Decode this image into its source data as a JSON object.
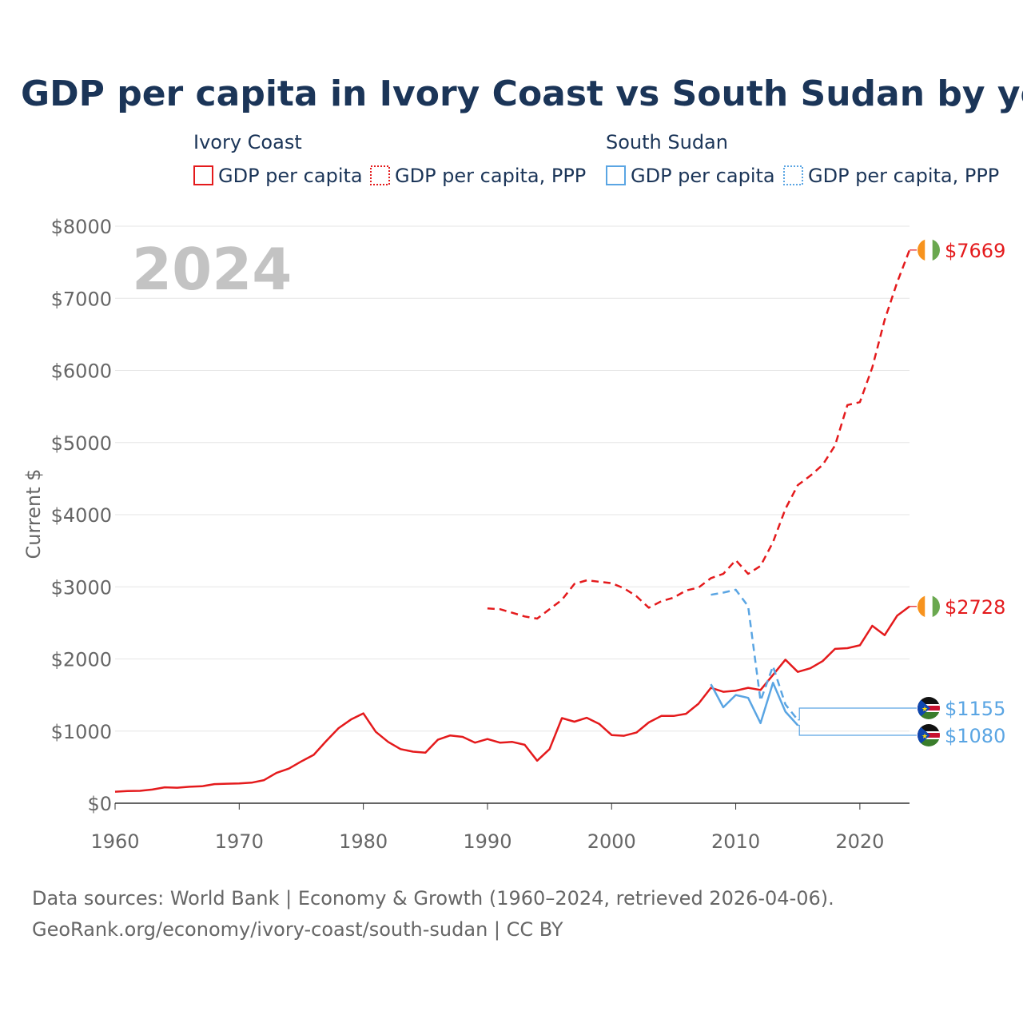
{
  "chart_data": {
    "type": "line",
    "title": "GDP per capita in Ivory Coast vs South Sudan by year",
    "ylabel": "Current $",
    "xlabel": "",
    "year_watermark": "2024",
    "xlim": [
      1960,
      2024
    ],
    "ylim": [
      0,
      8000
    ],
    "x_ticks": [
      1960,
      1970,
      1980,
      1990,
      2000,
      2010,
      2020
    ],
    "y_ticks": [
      0,
      1000,
      2000,
      3000,
      4000,
      5000,
      6000,
      7000,
      8000
    ],
    "y_tick_labels": [
      "$0",
      "$1000",
      "$2000",
      "$3000",
      "$4000",
      "$5000",
      "$6000",
      "$7000",
      "$8000"
    ],
    "legend": {
      "groups": [
        {
          "country": "Ivory Coast",
          "items": [
            "GDP per capita",
            "GDP per capita, PPP"
          ]
        },
        {
          "country": "South Sudan",
          "items": [
            "GDP per capita",
            "GDP per capita, PPP"
          ]
        }
      ]
    },
    "colors": {
      "ivory_coast": "#e41a1c",
      "south_sudan": "#5aa5e3",
      "title": "#1b3558",
      "axis_text": "#666666",
      "grid": "#e6e6e6",
      "watermark": "#c3c3c3"
    },
    "series": [
      {
        "name": "Ivory Coast GDP per capita",
        "country": "Ivory Coast",
        "style": "solid",
        "x": [
          1960,
          1961,
          1962,
          1963,
          1964,
          1965,
          1966,
          1967,
          1968,
          1969,
          1970,
          1971,
          1972,
          1973,
          1974,
          1975,
          1976,
          1977,
          1978,
          1979,
          1980,
          1981,
          1982,
          1983,
          1984,
          1985,
          1986,
          1987,
          1988,
          1989,
          1990,
          1991,
          1992,
          1993,
          1994,
          1995,
          1996,
          1997,
          1998,
          1999,
          2000,
          2001,
          2002,
          2003,
          2004,
          2005,
          2006,
          2007,
          2008,
          2009,
          2010,
          2011,
          2012,
          2013,
          2014,
          2015,
          2016,
          2017,
          2018,
          2019,
          2020,
          2021,
          2022,
          2023,
          2024
        ],
        "values": [
          160,
          170,
          172,
          190,
          220,
          215,
          228,
          235,
          265,
          270,
          275,
          285,
          320,
          420,
          480,
          580,
          670,
          860,
          1040,
          1160,
          1245,
          990,
          850,
          750,
          715,
          700,
          880,
          940,
          920,
          840,
          890,
          840,
          850,
          810,
          590,
          750,
          1180,
          1130,
          1185,
          1100,
          945,
          935,
          980,
          1120,
          1210,
          1210,
          1240,
          1380,
          1600,
          1545,
          1560,
          1600,
          1570,
          1780,
          1990,
          1820,
          1870,
          1970,
          2140,
          2150,
          2190,
          2460,
          2330,
          2600,
          2728
        ],
        "end_label": "$2728"
      },
      {
        "name": "Ivory Coast GDP per capita, PPP",
        "country": "Ivory Coast",
        "style": "dashed",
        "x": [
          1990,
          1991,
          1992,
          1993,
          1994,
          1995,
          1996,
          1997,
          1998,
          1999,
          2000,
          2001,
          2002,
          2003,
          2004,
          2005,
          2006,
          2007,
          2008,
          2009,
          2010,
          2011,
          2012,
          2013,
          2014,
          2015,
          2016,
          2017,
          2018,
          2019,
          2020,
          2021,
          2022,
          2023,
          2024
        ],
        "values": [
          2700,
          2690,
          2640,
          2590,
          2560,
          2690,
          2820,
          3040,
          3090,
          3070,
          3050,
          2980,
          2870,
          2710,
          2800,
          2850,
          2950,
          2990,
          3120,
          3180,
          3370,
          3180,
          3290,
          3620,
          4080,
          4410,
          4540,
          4690,
          4960,
          5520,
          5560,
          6040,
          6700,
          7220,
          7669
        ],
        "end_label": "$7669"
      },
      {
        "name": "South Sudan GDP per capita",
        "country": "South Sudan",
        "style": "solid",
        "x": [
          2008,
          2009,
          2010,
          2011,
          2012,
          2013,
          2014,
          2015
        ],
        "values": [
          1650,
          1330,
          1500,
          1460,
          1110,
          1670,
          1270,
          1080
        ],
        "end_label": "$1080"
      },
      {
        "name": "South Sudan GDP per capita, PPP",
        "country": "South Sudan",
        "style": "dashed",
        "x": [
          2008,
          2009,
          2010,
          2011,
          2012,
          2013,
          2014,
          2015
        ],
        "values": [
          2890,
          2920,
          2960,
          2730,
          1420,
          1900,
          1370,
          1155
        ],
        "end_label": "$1155"
      }
    ]
  },
  "footer": {
    "line1": "Data sources: World Bank | Economy & Growth (1960–2024, retrieved 2026-04-06).",
    "line2": "GeoRank.org/economy/ivory-coast/south-sudan | CC BY"
  }
}
